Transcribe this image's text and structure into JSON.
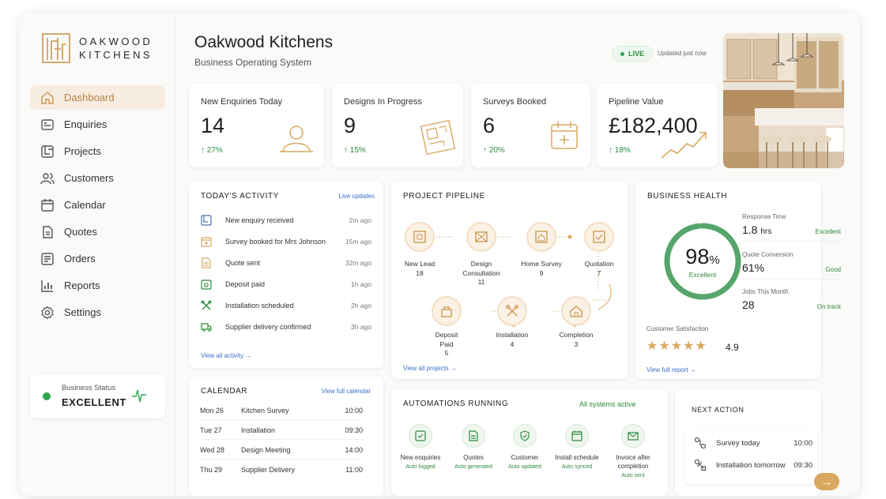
{
  "app": {
    "brand_line1": "OAKWOOD",
    "brand_line2": "KITCHENS",
    "title": "Oakwood Kitchens",
    "subtitle": "Business Operating System",
    "live_label": "LIVE",
    "updated": "Updated just now"
  },
  "sidebar": {
    "items": [
      {
        "label": "Dashboard",
        "icon": "home-icon",
        "active": true
      },
      {
        "label": "Enquiries",
        "icon": "inbox-icon"
      },
      {
        "label": "Projects",
        "icon": "blueprint-icon"
      },
      {
        "label": "Customers",
        "icon": "users-icon"
      },
      {
        "label": "Calendar",
        "icon": "calendar-icon"
      },
      {
        "label": "Quotes",
        "icon": "document-icon"
      },
      {
        "label": "Orders",
        "icon": "box-icon"
      },
      {
        "label": "Reports",
        "icon": "bar-chart-icon"
      },
      {
        "label": "Settings",
        "icon": "gear-icon"
      }
    ],
    "status": {
      "label": "Business Status",
      "value": "EXCELLENT",
      "color": "#2fa84f"
    }
  },
  "stats": [
    {
      "label": "New Enquiries Today",
      "value": "14",
      "change": "↑ 27%",
      "icon": "user-icon"
    },
    {
      "label": "Designs In Progress",
      "value": "9",
      "change": "↑ 15%",
      "icon": "blueprint-icon"
    },
    {
      "label": "Surveys Booked",
      "value": "6",
      "change": "↑ 20%",
      "icon": "calendar-plus-icon"
    },
    {
      "label": "Pipeline Value",
      "value": "£182,400",
      "change": "↑ 18%",
      "icon": "trend-line-icon"
    }
  ],
  "activity": {
    "title": "TODAY'S ACTIVITY",
    "link": "Live updates",
    "items": [
      {
        "text": "New enquiry received",
        "time": "2m ago",
        "icon": "blueprint-icon"
      },
      {
        "text": "Survey booked for Mrs Johnson",
        "time": "15m ago",
        "icon": "calendar-icon"
      },
      {
        "text": "Quote sent",
        "time": "32m ago",
        "icon": "document-icon"
      },
      {
        "text": "Deposit paid",
        "time": "1h ago",
        "icon": "payment-icon"
      },
      {
        "text": "Installation scheduled",
        "time": "2h ago",
        "icon": "tools-icon"
      },
      {
        "text": "Supplier delivery confirmed",
        "time": "3h ago",
        "icon": "truck-icon"
      }
    ],
    "footer": "View all activity →"
  },
  "pipeline": {
    "title": "PROJECT PIPELINE",
    "stages": [
      {
        "name": "New Lead",
        "count": "18"
      },
      {
        "name": "Design Consultation",
        "count": "11"
      },
      {
        "name": "Home Survey",
        "count": "9"
      },
      {
        "name": "Quotation",
        "count": "7"
      },
      {
        "name": "Deposit Paid",
        "count": "5"
      },
      {
        "name": "Installation",
        "count": "4"
      },
      {
        "name": "Completion",
        "count": "3"
      }
    ],
    "footer": "View all projects →"
  },
  "health": {
    "title": "BUSINESS HEALTH",
    "score": "98",
    "score_unit": "%",
    "score_fraction": 0.98,
    "score_label": "Excellent",
    "metrics": [
      {
        "label": "Response Time",
        "value": "1.8",
        "unit": "hrs",
        "status": "Excellent"
      },
      {
        "label": "Quote Conversion",
        "value": "61%",
        "unit": "",
        "status": "Good"
      },
      {
        "label": "Jobs This Month",
        "value": "28",
        "unit": "",
        "status": "On track"
      }
    ],
    "satisfaction_label": "Customer Satisfaction",
    "satisfaction_value": "4.9",
    "satisfaction_stars": 4.9,
    "footer": "View full report →"
  },
  "calendar": {
    "title": "CALENDAR",
    "link": "View full calendar",
    "rows": [
      {
        "date": "Mon 26",
        "event": "Kitchen Survey",
        "time": "10:00"
      },
      {
        "date": "Tue 27",
        "event": "Installation",
        "time": "09:30"
      },
      {
        "date": "Wed 28",
        "event": "Design Meeting",
        "time": "14:00"
      },
      {
        "date": "Thu 29",
        "event": "Supplier Delivery",
        "time": "11:00"
      }
    ]
  },
  "automations": {
    "title": "AUTOMATIONS RUNNING",
    "status": "All systems active",
    "items": [
      {
        "name": "New enquiries",
        "sub": "Auto logged"
      },
      {
        "name": "Quotes",
        "sub": "Auto generated"
      },
      {
        "name": "Customer",
        "sub": "Auto updated"
      },
      {
        "name": "Install schedule",
        "sub": "Auto synced"
      },
      {
        "name": "Invoice after completion",
        "sub": "Auto sent"
      }
    ]
  },
  "next_action": {
    "title": "NEXT ACTION",
    "rows": [
      {
        "text": "Survey today",
        "time": "10:00"
      },
      {
        "text": "Installation tomorrow",
        "time": "09:30"
      }
    ]
  },
  "colors": {
    "accent": "#c9964f",
    "success": "#2e8b3e",
    "link": "#3b6fc4"
  }
}
